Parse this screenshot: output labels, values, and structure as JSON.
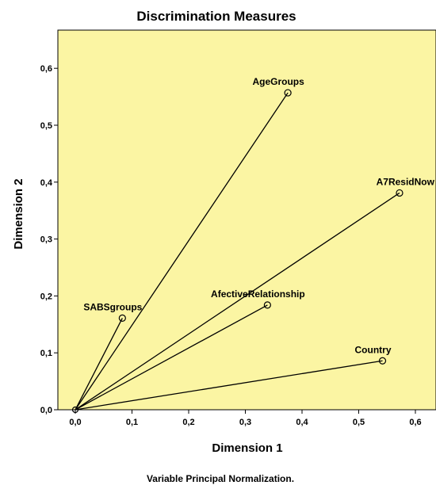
{
  "chart_data": {
    "type": "scatter",
    "title": "Discrimination Measures",
    "xlabel": "Dimension 1",
    "ylabel": "Dimension 2",
    "footnote": "Variable Principal Normalization.",
    "xlim": [
      -0.03,
      0.62
    ],
    "ylim": [
      0.0,
      0.66
    ],
    "xticks": [
      0.0,
      0.1,
      0.2,
      0.3,
      0.4,
      0.5,
      0.6
    ],
    "xtick_labels": [
      "0,0",
      "0,1",
      "0,2",
      "0,3",
      "0,4",
      "0,5",
      "0,6"
    ],
    "yticks": [
      0.0,
      0.1,
      0.2,
      0.3,
      0.4,
      0.5,
      0.6
    ],
    "ytick_labels": [
      "0,0",
      "0,1",
      "0,2",
      "0,3",
      "0,4",
      "0,5",
      "0,6"
    ],
    "grid": false,
    "vectors_from_origin": true,
    "plot_background": "#fbf5a3",
    "points": [
      {
        "label": "AgeGroups",
        "x": 0.375,
        "y": 0.557
      },
      {
        "label": "A7ResidNow",
        "x": 0.572,
        "y": 0.381
      },
      {
        "label": "AfectiveRelationship",
        "x": 0.339,
        "y": 0.184
      },
      {
        "label": "SABSgroups",
        "x": 0.083,
        "y": 0.161
      },
      {
        "label": "Country",
        "x": 0.542,
        "y": 0.086
      }
    ]
  }
}
